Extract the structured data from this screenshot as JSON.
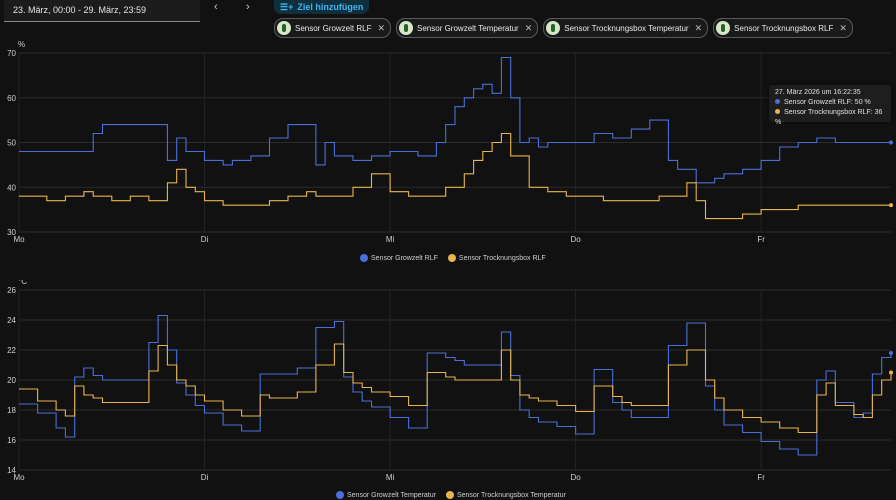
{
  "header": {
    "date_range": "23. März, 00:00 - 29. März, 23:59",
    "prev_icon": "chevron-left-icon",
    "next_icon": "chevron-right-icon",
    "prev_label": "‹",
    "next_label": "›",
    "add_target_label": "Ziel hinzufügen",
    "add_target_icon": "list-plus-icon"
  },
  "chips": [
    {
      "label": "Sensor Growzelt RLF",
      "icon": "sensor-icon"
    },
    {
      "label": "Sensor Growzelt Temperatur",
      "icon": "sensor-icon"
    },
    {
      "label": "Sensor Trocknungsbox Temperatur",
      "icon": "sensor-icon"
    },
    {
      "label": "Sensor Trocknungsbox RLF",
      "icon": "sensor-icon"
    }
  ],
  "colors": {
    "blue": "#4a6fd8",
    "orange": "#e9b44c",
    "background": "#111111",
    "grid": "#2a2a2a"
  },
  "tooltip": {
    "title": "27. März 2026 um 16:22:35",
    "line1": "Sensor Growzelt RLF: 50 %",
    "line2": "Sensor Trocknungsbox RLF: 36 %"
  },
  "chart_data": [
    {
      "type": "line",
      "unit": "%",
      "ylim": [
        30,
        70
      ],
      "yticks": [
        30,
        40,
        50,
        60,
        70
      ],
      "x_days": [
        "Mo",
        "Di",
        "Mi",
        "Do",
        "Fr"
      ],
      "xlim": [
        0,
        4.7
      ],
      "grid": true,
      "legend_position": "bottom",
      "series": [
        {
          "name": "Sensor Growzelt RLF",
          "color": "#4a6fd8",
          "x": [
            0.0,
            0.35,
            0.4,
            0.45,
            0.5,
            0.75,
            0.8,
            0.85,
            0.9,
            1.0,
            1.1,
            1.15,
            1.25,
            1.35,
            1.45,
            1.55,
            1.6,
            1.65,
            1.7,
            1.8,
            1.9,
            2.0,
            2.15,
            2.25,
            2.3,
            2.35,
            2.4,
            2.45,
            2.5,
            2.55,
            2.6,
            2.65,
            2.7,
            2.75,
            2.8,
            2.85,
            2.9,
            3.0,
            3.1,
            3.2,
            3.3,
            3.4,
            3.5,
            3.55,
            3.65,
            3.7,
            3.75,
            3.8,
            3.9,
            4.0,
            4.1,
            4.2,
            4.3,
            4.4,
            4.5,
            4.55,
            4.6,
            4.7
          ],
          "values": [
            48,
            48,
            52,
            54,
            54,
            54,
            46,
            51,
            48,
            46,
            45,
            46,
            47,
            51,
            54,
            54,
            45,
            50,
            47,
            46,
            47,
            48,
            47,
            50,
            54,
            58,
            60,
            62,
            63,
            61,
            69,
            60,
            50,
            51,
            49,
            50,
            50,
            50,
            52,
            51,
            53,
            55,
            46,
            44,
            41,
            41,
            42,
            43,
            44,
            46,
            49,
            50,
            51,
            50,
            50,
            50,
            50,
            50
          ]
        },
        {
          "name": "Sensor Trocknungsbox RLF",
          "color": "#e9b44c",
          "x": [
            0.0,
            0.15,
            0.25,
            0.35,
            0.4,
            0.5,
            0.6,
            0.7,
            0.8,
            0.85,
            0.9,
            0.95,
            1.0,
            1.1,
            1.2,
            1.35,
            1.45,
            1.55,
            1.6,
            1.7,
            1.8,
            1.9,
            2.0,
            2.1,
            2.2,
            2.3,
            2.4,
            2.45,
            2.5,
            2.55,
            2.6,
            2.65,
            2.75,
            2.85,
            2.95,
            3.05,
            3.15,
            3.25,
            3.35,
            3.45,
            3.55,
            3.6,
            3.65,
            3.7,
            3.8,
            3.9,
            4.0,
            4.1,
            4.2,
            4.3,
            4.4,
            4.5,
            4.6,
            4.7
          ],
          "values": [
            38,
            37,
            38,
            39,
            38,
            37,
            38,
            37,
            41,
            44,
            40,
            39,
            37,
            36,
            36,
            37,
            38,
            39,
            38,
            38,
            40,
            43,
            39,
            38,
            38,
            40,
            43,
            46,
            48,
            50,
            52,
            47,
            40,
            39,
            38,
            38,
            37,
            37,
            37,
            38,
            38,
            41,
            37,
            33,
            33,
            34,
            35,
            35,
            36,
            36,
            36,
            36,
            36,
            36
          ]
        }
      ]
    },
    {
      "type": "line",
      "unit": "°C",
      "ylim": [
        14,
        26
      ],
      "yticks": [
        14,
        16,
        18,
        20,
        22,
        24,
        26
      ],
      "x_days": [
        "Mo",
        "Di",
        "Mi",
        "Do",
        "Fr"
      ],
      "xlim": [
        0,
        4.7
      ],
      "grid": true,
      "legend_position": "bottom",
      "series": [
        {
          "name": "Sensor Growzelt Temperatur",
          "color": "#4a6fd8",
          "x": [
            0.0,
            0.1,
            0.2,
            0.25,
            0.3,
            0.35,
            0.4,
            0.45,
            0.55,
            0.7,
            0.75,
            0.8,
            0.85,
            0.9,
            0.95,
            1.0,
            1.1,
            1.2,
            1.3,
            1.35,
            1.4,
            1.5,
            1.6,
            1.7,
            1.75,
            1.8,
            1.85,
            1.9,
            2.0,
            2.1,
            2.2,
            2.3,
            2.35,
            2.4,
            2.5,
            2.6,
            2.65,
            2.7,
            2.75,
            2.8,
            2.9,
            3.0,
            3.1,
            3.2,
            3.25,
            3.3,
            3.4,
            3.5,
            3.6,
            3.7,
            3.75,
            3.8,
            3.9,
            4.0,
            4.1,
            4.2,
            4.3,
            4.35,
            4.4,
            4.5,
            4.55,
            4.6,
            4.65,
            4.7
          ],
          "values": [
            18.4,
            17.8,
            16.8,
            16.2,
            20.2,
            20.8,
            20.3,
            20.0,
            20.0,
            22.5,
            24.3,
            22.0,
            19.8,
            19.0,
            18.3,
            17.8,
            17.0,
            16.6,
            20.4,
            20.4,
            20.4,
            20.8,
            23.5,
            23.9,
            20.2,
            19.2,
            18.6,
            18.2,
            17.5,
            16.8,
            21.8,
            21.5,
            21.3,
            21.0,
            21.0,
            23.2,
            20.3,
            18.0,
            17.5,
            17.2,
            16.9,
            16.4,
            20.7,
            18.5,
            18.0,
            17.5,
            17.5,
            22.3,
            23.8,
            19.6,
            18.0,
            17.0,
            16.5,
            15.9,
            15.4,
            15.0,
            20.0,
            20.6,
            18.5,
            17.5,
            17.8,
            20.4,
            21.5,
            21.8
          ]
        },
        {
          "name": "Sensor Trocknungsbox Temperatur",
          "color": "#e9b44c",
          "x": [
            0.0,
            0.1,
            0.2,
            0.25,
            0.3,
            0.35,
            0.4,
            0.45,
            0.55,
            0.7,
            0.75,
            0.8,
            0.85,
            0.9,
            0.95,
            1.0,
            1.1,
            1.2,
            1.3,
            1.35,
            1.4,
            1.5,
            1.6,
            1.7,
            1.75,
            1.8,
            1.85,
            1.9,
            2.0,
            2.1,
            2.2,
            2.3,
            2.35,
            2.4,
            2.5,
            2.6,
            2.65,
            2.7,
            2.75,
            2.8,
            2.9,
            3.0,
            3.1,
            3.2,
            3.25,
            3.3,
            3.4,
            3.5,
            3.6,
            3.7,
            3.75,
            3.8,
            3.9,
            4.0,
            4.1,
            4.2,
            4.3,
            4.35,
            4.4,
            4.5,
            4.55,
            4.6,
            4.65,
            4.7
          ],
          "values": [
            19.4,
            18.6,
            18.0,
            17.6,
            19.6,
            19.0,
            18.8,
            18.5,
            18.5,
            20.6,
            22.3,
            21.0,
            20.0,
            19.6,
            19.0,
            18.6,
            18.0,
            17.6,
            19.0,
            18.8,
            18.8,
            19.2,
            21.0,
            22.4,
            20.5,
            19.8,
            19.5,
            19.2,
            18.9,
            18.3,
            20.5,
            20.2,
            20.0,
            20.0,
            20.0,
            22.0,
            20.0,
            19.0,
            18.8,
            18.6,
            18.3,
            17.9,
            19.6,
            18.9,
            18.5,
            18.3,
            18.3,
            21.0,
            22.0,
            20.0,
            18.8,
            18.0,
            17.5,
            17.2,
            16.8,
            16.5,
            19.0,
            19.8,
            18.3,
            17.7,
            17.5,
            19.0,
            20.0,
            20.5
          ]
        }
      ]
    }
  ]
}
